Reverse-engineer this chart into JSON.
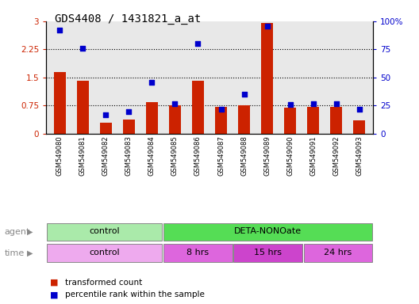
{
  "title": "GDS4408 / 1431821_a_at",
  "samples": [
    "GSM549080",
    "GSM549081",
    "GSM549082",
    "GSM549083",
    "GSM549084",
    "GSM549085",
    "GSM549086",
    "GSM549087",
    "GSM549088",
    "GSM549089",
    "GSM549090",
    "GSM549091",
    "GSM549092",
    "GSM549093"
  ],
  "bar_values": [
    1.65,
    1.42,
    0.3,
    0.38,
    0.85,
    0.75,
    1.42,
    0.72,
    0.75,
    2.95,
    0.7,
    0.72,
    0.72,
    0.35
  ],
  "dot_values": [
    92,
    76,
    17,
    20,
    46,
    27,
    80,
    22,
    35,
    96,
    26,
    27,
    27,
    22
  ],
  "bar_color": "#cc2200",
  "dot_color": "#0000cc",
  "ylim_left": [
    0,
    3
  ],
  "ylim_right": [
    0,
    100
  ],
  "yticks_left": [
    0,
    0.75,
    1.5,
    2.25,
    3
  ],
  "yticks_right": [
    0,
    25,
    50,
    75,
    100
  ],
  "ytick_labels_left": [
    "0",
    "0.75",
    "1.5",
    "2.25",
    "3"
  ],
  "ytick_labels_right": [
    "0",
    "25",
    "50",
    "75",
    "100%"
  ],
  "grid_values": [
    0.75,
    1.5,
    2.25
  ],
  "agent_groups": [
    {
      "label": "control",
      "start": 0,
      "end": 5,
      "color": "#aaeaaa"
    },
    {
      "label": "DETA-NONOate",
      "start": 5,
      "end": 14,
      "color": "#55dd55"
    }
  ],
  "time_groups": [
    {
      "label": "control",
      "start": 0,
      "end": 5,
      "color": "#eeaaee"
    },
    {
      "label": "8 hrs",
      "start": 5,
      "end": 8,
      "color": "#dd66dd"
    },
    {
      "label": "15 hrs",
      "start": 8,
      "end": 11,
      "color": "#cc44cc"
    },
    {
      "label": "24 hrs",
      "start": 11,
      "end": 14,
      "color": "#dd66dd"
    }
  ],
  "legend_items": [
    {
      "label": "transformed count",
      "color": "#cc2200"
    },
    {
      "label": "percentile rank within the sample",
      "color": "#0000cc"
    }
  ],
  "agent_label": "agent",
  "time_label": "time",
  "background_color": "#ffffff",
  "plot_bg_color": "#e8e8e8"
}
